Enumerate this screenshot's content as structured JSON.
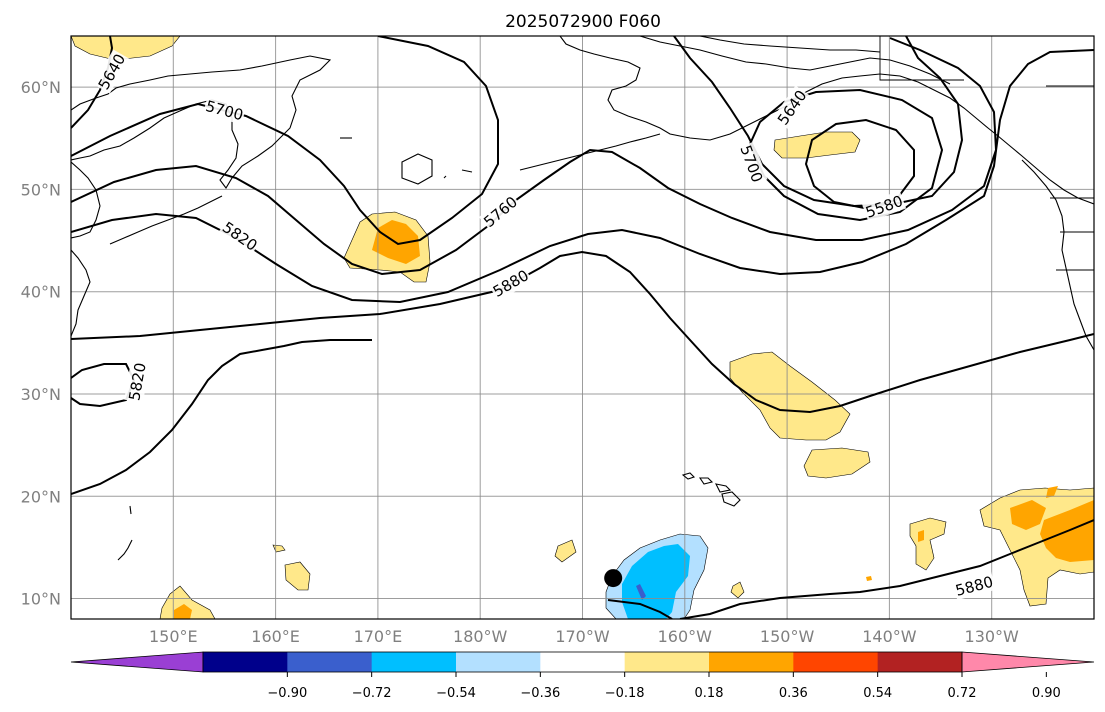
{
  "title": "2025072900 F060",
  "map": {
    "lon_range": [
      140,
      240
    ],
    "lat_range": [
      8,
      65
    ],
    "lat_ticks": [
      {
        "value": 10,
        "label": "10°N"
      },
      {
        "value": 20,
        "label": "20°N"
      },
      {
        "value": 30,
        "label": "30°N"
      },
      {
        "value": 40,
        "label": "40°N"
      },
      {
        "value": 50,
        "label": "50°N"
      },
      {
        "value": 60,
        "label": "60°N"
      }
    ],
    "lon_ticks": [
      {
        "value": 150,
        "label": "150°E"
      },
      {
        "value": 160,
        "label": "160°E"
      },
      {
        "value": 170,
        "label": "170°E"
      },
      {
        "value": 180,
        "label": "180°W"
      },
      {
        "value": 190,
        "label": "170°W"
      },
      {
        "value": 200,
        "label": "160°W"
      },
      {
        "value": 210,
        "label": "150°W"
      },
      {
        "value": 220,
        "label": "140°W"
      },
      {
        "value": 230,
        "label": "130°W"
      }
    ],
    "contour_labels": [
      {
        "text": "5640",
        "lon": 144.0,
        "lat": 61.5,
        "angle": -60
      },
      {
        "text": "5700",
        "lon": 155.0,
        "lat": 57.7,
        "angle": 15
      },
      {
        "text": "5820",
        "lon": 156.5,
        "lat": 45.4,
        "angle": 35
      },
      {
        "text": "5820",
        "lon": 146.5,
        "lat": 31.2,
        "angle": -80
      },
      {
        "text": "5760",
        "lon": 182.0,
        "lat": 47.8,
        "angle": -40
      },
      {
        "text": "5880",
        "lon": 183.0,
        "lat": 40.8,
        "angle": -30
      },
      {
        "text": "5640",
        "lon": 210.5,
        "lat": 58.0,
        "angle": -55
      },
      {
        "text": "5700",
        "lon": 206.5,
        "lat": 52.5,
        "angle": 70
      },
      {
        "text": "5580",
        "lon": 219.5,
        "lat": 48.3,
        "angle": -20
      },
      {
        "text": "5880",
        "lon": 228.3,
        "lat": 11.2,
        "angle": -15
      }
    ],
    "marker": {
      "name": "storm-center",
      "lon": 193.0,
      "lat": 12.0
    }
  },
  "colorbar": {
    "colors": [
      "#9a3fd4",
      "#00008b",
      "#3a5fcd",
      "#00bfff",
      "#b3e0ff",
      "#ffffff",
      "#ffe88a",
      "#ffa500",
      "#ff4500",
      "#b22222",
      "#ff88aa"
    ],
    "labels": [
      "−0.90",
      "−0.72",
      "−0.54",
      "−0.36",
      "−0.18",
      "0.18",
      "0.36",
      "0.54",
      "0.72",
      "0.90"
    ]
  }
}
